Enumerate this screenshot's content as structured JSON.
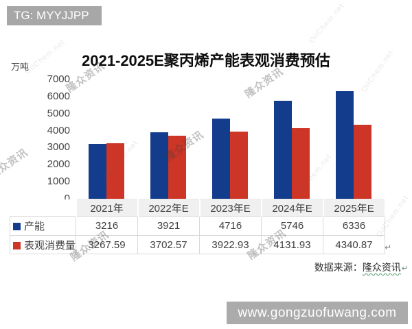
{
  "header": {
    "tag_label": "TG: MYYJJPP"
  },
  "watermarks": {
    "primary": "隆众资讯",
    "secondary": "OilChem.net"
  },
  "chart_data": {
    "type": "bar",
    "title": "2021-2025E聚丙烯产能表观消费预估",
    "unit_label": "万吨",
    "categories": [
      "2021年",
      "2022年E",
      "2023年E",
      "2024年E",
      "2025年E"
    ],
    "series": [
      {
        "name": "产能",
        "color": "#143C8C",
        "values": [
          3216,
          3921,
          4716,
          5746,
          6336
        ],
        "labels": [
          "3216",
          "3921",
          "4716",
          "5746",
          "6336"
        ]
      },
      {
        "name": "表观消费量",
        "color": "#CD3526",
        "values": [
          3267.59,
          3702.57,
          3922.93,
          4131.93,
          4340.87
        ],
        "labels": [
          "3267.59",
          "3702.57",
          "3922.93",
          "4131.93",
          "4340.87"
        ]
      }
    ],
    "ylim": [
      0,
      7000
    ],
    "ytick_step": 1000,
    "grid": false,
    "legend_position": "data-table-left",
    "data_table": true
  },
  "source": {
    "label": "数据来源：",
    "link_text": "隆众资讯",
    "return_mark": "↵"
  },
  "table_return_mark": "↵",
  "footer": {
    "url": "www.gongzuofuwang.com"
  }
}
